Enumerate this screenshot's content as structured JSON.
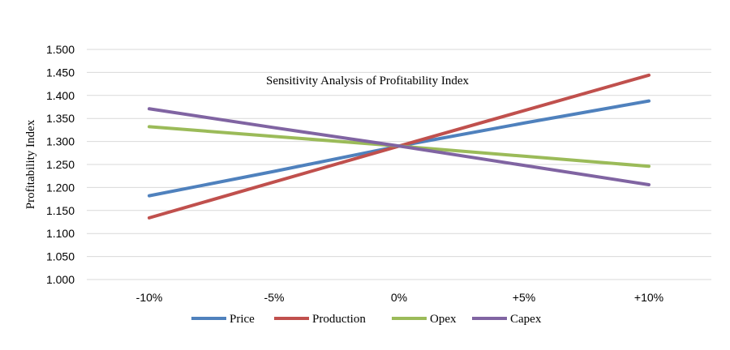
{
  "chart_data": {
    "type": "line",
    "title": "Sensitivity Analysis of Profitability Index",
    "xlabel": "",
    "ylabel": "Profitability Index",
    "categories": [
      "-10%",
      "-5%",
      "0%",
      "+5%",
      "+10%"
    ],
    "ylim": [
      1.0,
      1.5
    ],
    "yticks": [
      "1.000",
      "1.050",
      "1.100",
      "1.150",
      "1.200",
      "1.250",
      "1.300",
      "1.350",
      "1.400",
      "1.450",
      "1.500"
    ],
    "grid": true,
    "legend_position": "bottom",
    "series": [
      {
        "name": "Price",
        "color": "#4f81bd",
        "values": [
          1.182,
          1.235,
          1.29,
          1.34,
          1.388
        ]
      },
      {
        "name": "Production",
        "color": "#c0504d",
        "values": [
          1.134,
          1.212,
          1.29,
          1.367,
          1.444
        ]
      },
      {
        "name": "Opex",
        "color": "#9bbb59",
        "values": [
          1.332,
          1.311,
          1.29,
          1.268,
          1.246
        ]
      },
      {
        "name": "Capex",
        "color": "#8064a2",
        "values": [
          1.371,
          1.33,
          1.29,
          1.248,
          1.206
        ]
      }
    ]
  }
}
